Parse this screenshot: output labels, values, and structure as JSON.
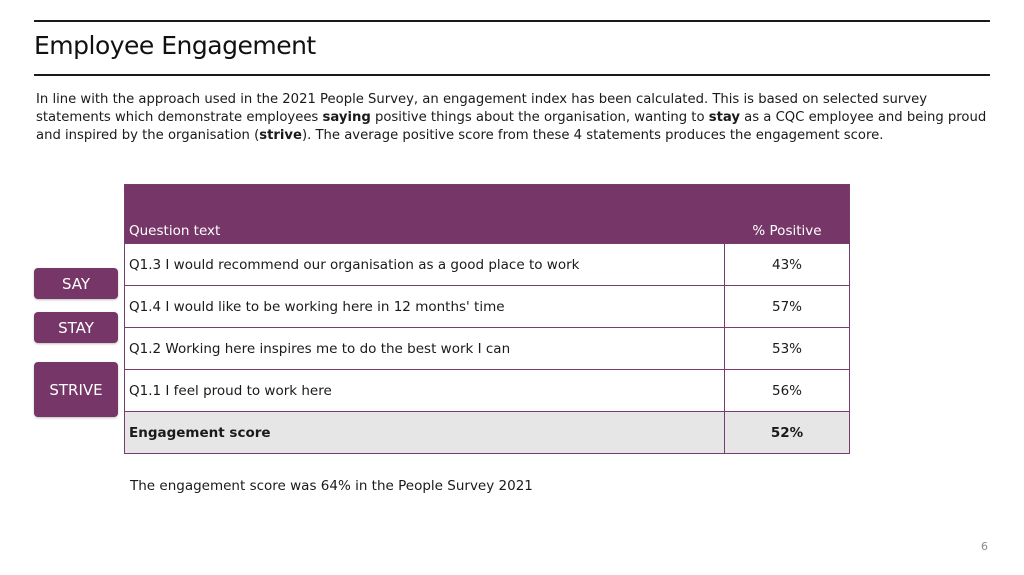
{
  "title": "Employee Engagement",
  "intro": {
    "p1": "In line with the approach used in the 2021 People Survey, an engagement index has been calculated. This is based on selected survey statements which demonstrate employees ",
    "b1": "saying",
    "p2": " positive things about the organisation, wanting to ",
    "b2": "stay",
    "p3": " as a CQC employee and being proud and inspired by the organisation (",
    "b3": "strive",
    "p4": "). The average positive score from these 4 statements produces the engagement score."
  },
  "tags": {
    "say": "SAY",
    "stay": "STAY",
    "strive": "STRIVE"
  },
  "table": {
    "header_question": "Question text",
    "header_positive": "% Positive",
    "rows": [
      {
        "question": "Q1.3  I would recommend our organisation as a good place to work",
        "positive": "43%"
      },
      {
        "question": "Q1.4 I would like to be working here in 12 months' time",
        "positive": "57%"
      },
      {
        "question": "Q1.2 Working here inspires me to do the best work I can",
        "positive": "53%"
      },
      {
        "question": "Q1.1 I feel proud to work here",
        "positive": "56%"
      }
    ],
    "total": {
      "label": "Engagement score",
      "value": "52%"
    }
  },
  "note": "The engagement score was 64% in the People Survey 2021",
  "page_number": "6",
  "colors": {
    "accent": "#763768",
    "total_row_bg": "#e6e6e6"
  }
}
